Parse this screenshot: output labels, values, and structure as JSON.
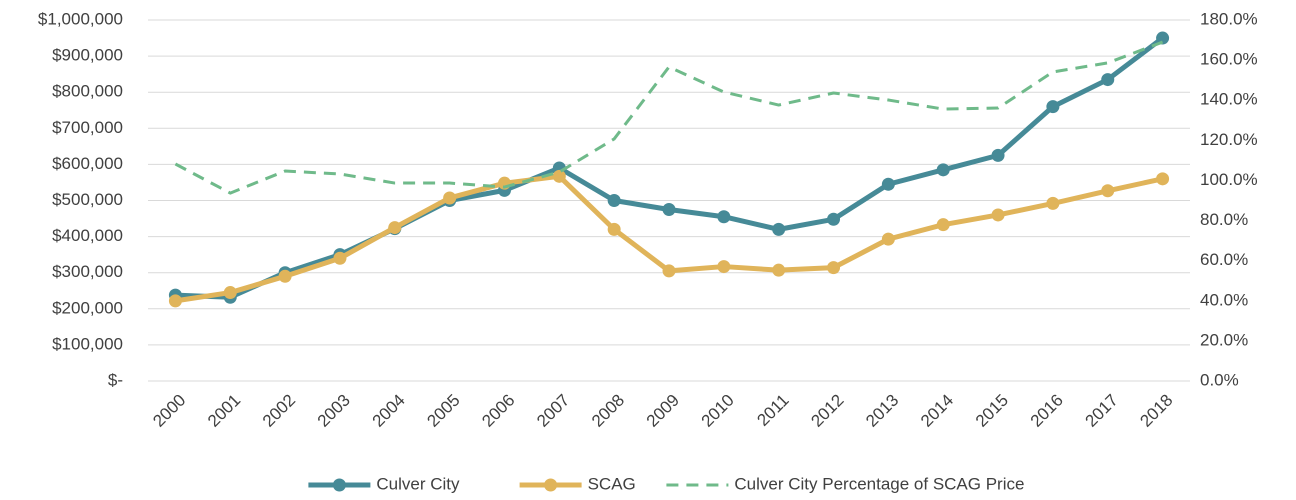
{
  "chart_data": {
    "type": "line",
    "categories": [
      "2000",
      "2001",
      "2002",
      "2003",
      "2004",
      "2005",
      "2006",
      "2007",
      "2008",
      "2009",
      "2010",
      "2011",
      "2012",
      "2013",
      "2014",
      "2015",
      "2016",
      "2017",
      "2018"
    ],
    "series": [
      {
        "name": "Culver City",
        "color": "#468a97",
        "values": [
          238000,
          232000,
          300000,
          350000,
          422000,
          500000,
          528000,
          590000,
          500000,
          475000,
          455000,
          420000,
          448000,
          545000,
          585000,
          625000,
          760000,
          835000,
          950000
        ]
      },
      {
        "name": "SCAG",
        "color": "#e0b45a",
        "values": [
          222000,
          245000,
          290000,
          340000,
          425000,
          507000,
          548000,
          567000,
          420000,
          305000,
          317000,
          307000,
          314000,
          393000,
          433000,
          460000,
          492000,
          527000,
          560000
        ]
      },
      {
        "name": "Culver City Percentage of SCAG Price",
        "color": "#6fba8a",
        "axis": "y2",
        "dashed": true,
        "values": [
          108.2,
          93.7,
          104.7,
          103.2,
          98.7,
          98.7,
          96.7,
          104.2,
          120.7,
          156.6,
          144.1,
          137.6,
          143.6,
          140.1,
          135.6,
          136.1,
          154.1,
          158.6,
          169.0
        ]
      }
    ],
    "ylim": [
      0,
      1000000
    ],
    "yticks": [
      {
        "value": 0,
        "label": "$-"
      },
      {
        "value": 100000,
        "label": "$100,000"
      },
      {
        "value": 200000,
        "label": "$200,000"
      },
      {
        "value": 300000,
        "label": "$300,000"
      },
      {
        "value": 400000,
        "label": "$400,000"
      },
      {
        "value": 500000,
        "label": "$500,000"
      },
      {
        "value": 600000,
        "label": "$600,000"
      },
      {
        "value": 700000,
        "label": "$700,000"
      },
      {
        "value": 800000,
        "label": "$800,000"
      },
      {
        "value": 900000,
        "label": "$900,000"
      },
      {
        "value": 1000000,
        "label": "$1,000,000"
      }
    ],
    "y2lim": [
      0,
      180
    ],
    "y2ticks": [
      {
        "value": 0,
        "label": "0.0%"
      },
      {
        "value": 20,
        "label": "20.0%"
      },
      {
        "value": 40,
        "label": "40.0%"
      },
      {
        "value": 60,
        "label": "60.0%"
      },
      {
        "value": 80,
        "label": "80.0%"
      },
      {
        "value": 100,
        "label": "100.0%"
      },
      {
        "value": 120,
        "label": "120.0%"
      },
      {
        "value": 140,
        "label": "140.0%"
      },
      {
        "value": 160,
        "label": "160.0%"
      },
      {
        "value": 180,
        "label": "180.0%"
      }
    ],
    "grid": true,
    "legend": "bottom"
  }
}
